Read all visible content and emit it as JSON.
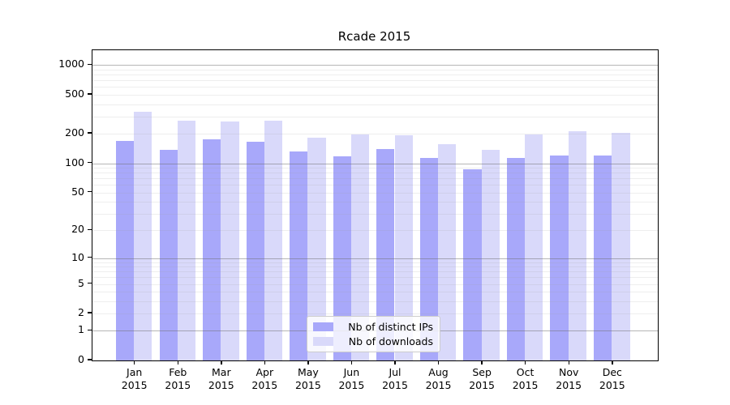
{
  "chart_data": {
    "type": "bar",
    "title": "Rcade 2015",
    "x_months": [
      "Jan",
      "Feb",
      "Mar",
      "Apr",
      "May",
      "Jun",
      "Jul",
      "Aug",
      "Sep",
      "Oct",
      "Nov",
      "Dec"
    ],
    "x_year": "2015",
    "series": [
      {
        "name": "Nb of distinct IPs",
        "color": "#a8a8fa",
        "values": [
          168,
          138,
          175,
          165,
          132,
          118,
          140,
          114,
          86,
          114,
          119,
          121
        ]
      },
      {
        "name": "Nb of downloads",
        "color": "#d9d9fa",
        "values": [
          335,
          270,
          268,
          272,
          181,
          198,
          192,
          158,
          137,
          196,
          212,
          204
        ]
      }
    ],
    "yscale": "log10(1+v)",
    "ylim": [
      0,
      1460
    ],
    "y_tick_labels": [
      "1000",
      "500",
      "200",
      "100",
      "50",
      "20",
      "10",
      "5",
      "2",
      "1",
      "0"
    ],
    "y_tick_values": [
      1000,
      500,
      200,
      100,
      50,
      20,
      10,
      5,
      2,
      1,
      0
    ],
    "y_major_gridlines": [
      1,
      10,
      100,
      1000
    ],
    "y_minor_gridlines": [
      2,
      3,
      4,
      5,
      6,
      7,
      8,
      9,
      20,
      30,
      40,
      50,
      60,
      70,
      80,
      90,
      200,
      300,
      400,
      500,
      600,
      700,
      800,
      900
    ],
    "grid_major_color": "#6e6e6e",
    "grid_minor_color": "#9e9e9e",
    "axis_color": "#000000",
    "background_color": "#ffffff",
    "legend_position": "lower-center"
  }
}
